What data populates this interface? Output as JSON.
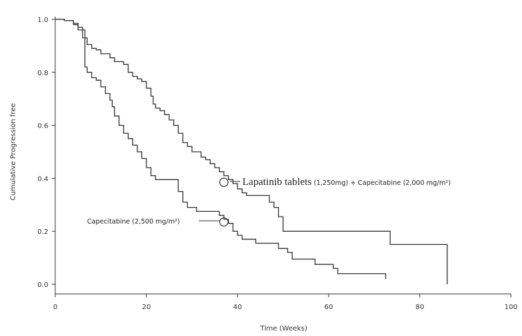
{
  "chart_data": {
    "type": "line",
    "xlabel": "Time (Weeks)",
    "ylabel": "Cumulative Progression free",
    "xlim": [
      0,
      100
    ],
    "ylim": [
      0,
      1.0
    ],
    "x_ticks": [
      "0",
      "20",
      "40",
      "60",
      "80",
      "100"
    ],
    "y_ticks": [
      "0.0",
      "0.2",
      "0.4",
      "0.6",
      "0.8",
      "1.0"
    ],
    "grid": false,
    "line_color": "#333333",
    "series": [
      {
        "label_prefix": "Lapatinib tablets",
        "label_suffix": " (1,250mg) + Capecitabine (2,000 mg/m²)",
        "marker_at": [
          37,
          0.385
        ],
        "points": [
          [
            0,
            1.0
          ],
          [
            2,
            0.995
          ],
          [
            4,
            0.985
          ],
          [
            5,
            0.97
          ],
          [
            6,
            0.96
          ],
          [
            6.5,
            0.93
          ],
          [
            7,
            0.905
          ],
          [
            8,
            0.89
          ],
          [
            9,
            0.885
          ],
          [
            10,
            0.87
          ],
          [
            12,
            0.855
          ],
          [
            13,
            0.84
          ],
          [
            15,
            0.83
          ],
          [
            16,
            0.8
          ],
          [
            17,
            0.785
          ],
          [
            18,
            0.775
          ],
          [
            19,
            0.765
          ],
          [
            20,
            0.74
          ],
          [
            21,
            0.71
          ],
          [
            21.5,
            0.68
          ],
          [
            22,
            0.665
          ],
          [
            23,
            0.655
          ],
          [
            24,
            0.64
          ],
          [
            25,
            0.62
          ],
          [
            26,
            0.6
          ],
          [
            27,
            0.57
          ],
          [
            28,
            0.535
          ],
          [
            29,
            0.52
          ],
          [
            30,
            0.5
          ],
          [
            32,
            0.48
          ],
          [
            33,
            0.47
          ],
          [
            34,
            0.455
          ],
          [
            35,
            0.44
          ],
          [
            36,
            0.425
          ],
          [
            37,
            0.41
          ],
          [
            38,
            0.395
          ],
          [
            39,
            0.38
          ],
          [
            40,
            0.36
          ],
          [
            41,
            0.345
          ],
          [
            42,
            0.335
          ],
          [
            47,
            0.31
          ],
          [
            48,
            0.29
          ],
          [
            49,
            0.255
          ],
          [
            50,
            0.2
          ],
          [
            73.5,
            0.15
          ],
          [
            86,
            0.0
          ]
        ]
      },
      {
        "label": "Capecitabine (2,500 mg/m²)",
        "marker_at": [
          37,
          0.235
        ],
        "points": [
          [
            0,
            1.0
          ],
          [
            2,
            0.995
          ],
          [
            4,
            0.98
          ],
          [
            5,
            0.96
          ],
          [
            6,
            0.93
          ],
          [
            6.5,
            0.82
          ],
          [
            7,
            0.8
          ],
          [
            8,
            0.78
          ],
          [
            9,
            0.77
          ],
          [
            10,
            0.745
          ],
          [
            11,
            0.72
          ],
          [
            12,
            0.695
          ],
          [
            12.5,
            0.67
          ],
          [
            13,
            0.635
          ],
          [
            14,
            0.6
          ],
          [
            15,
            0.57
          ],
          [
            16,
            0.55
          ],
          [
            17,
            0.525
          ],
          [
            18,
            0.5
          ],
          [
            19,
            0.475
          ],
          [
            20,
            0.44
          ],
          [
            21,
            0.41
          ],
          [
            22,
            0.395
          ],
          [
            27,
            0.35
          ],
          [
            28,
            0.31
          ],
          [
            29,
            0.29
          ],
          [
            31,
            0.275
          ],
          [
            36,
            0.26
          ],
          [
            37,
            0.245
          ],
          [
            38,
            0.23
          ],
          [
            39,
            0.2
          ],
          [
            40,
            0.185
          ],
          [
            41,
            0.17
          ],
          [
            44,
            0.155
          ],
          [
            49,
            0.135
          ],
          [
            51,
            0.12
          ],
          [
            52,
            0.095
          ],
          [
            57,
            0.075
          ],
          [
            61,
            0.06
          ],
          [
            62,
            0.04
          ],
          [
            72.5,
            0.02
          ]
        ]
      }
    ]
  }
}
